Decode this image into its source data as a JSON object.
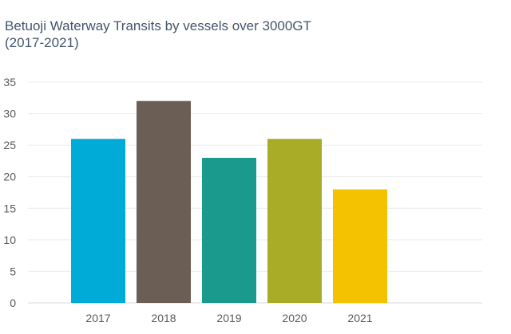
{
  "chart_data": {
    "type": "bar",
    "title_lines": [
      "Betuoji Waterway Transits by vessels over 3000GT",
      "(2017-2021)"
    ],
    "categories": [
      "2017",
      "2018",
      "2019",
      "2020",
      "2021"
    ],
    "values": [
      26,
      32,
      23,
      26,
      18
    ],
    "colors": [
      "#00abd8",
      "#6b5e55",
      "#199a8c",
      "#a8ac26",
      "#f4c200"
    ],
    "yticks": [
      0,
      5,
      10,
      15,
      20,
      25,
      30,
      35
    ],
    "ylim": [
      0,
      35
    ],
    "xlabel": "",
    "ylabel": "",
    "grid": true,
    "legend": "none"
  }
}
